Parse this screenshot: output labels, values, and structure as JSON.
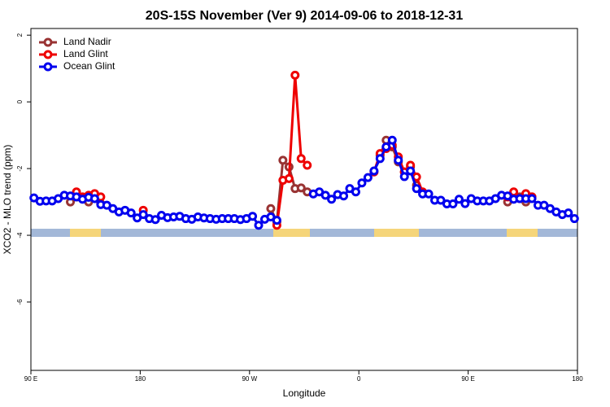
{
  "chart_data": {
    "type": "line",
    "title": "20S-15S November (Ver 9)   2014-09-06 to 2018-12-31",
    "xlabel": "Longitude",
    "ylabel": "XCO2 - MLO trend (ppm)",
    "xlim": [
      90,
      540
    ],
    "ylim": [
      -8.05,
      2.2
    ],
    "xticks": [
      {
        "value": 90,
        "label": "90 E"
      },
      180,
      {
        "value": 270,
        "label": "90 W"
      },
      {
        "value": 360,
        "label": "0"
      },
      {
        "value": 450,
        "label": "90 E"
      },
      {
        "value": 540,
        "label": "180"
      }
    ],
    "yticks": [
      2,
      0,
      -2,
      -4,
      -6
    ],
    "grid": false,
    "legend": "topleft",
    "x": [
      92.5,
      97.5,
      102.5,
      107.5,
      112.5,
      117.5,
      122.5,
      127.5,
      132.5,
      137.5,
      142.5,
      147.5,
      152.5,
      157.5,
      162.5,
      167.5,
      172.5,
      177.5,
      182.5,
      187.5,
      192.5,
      197.5,
      202.5,
      207.5,
      212.5,
      217.5,
      222.5,
      227.5,
      232.5,
      237.5,
      242.5,
      247.5,
      252.5,
      257.5,
      262.5,
      267.5,
      272.5,
      277.5,
      282.5,
      287.5,
      292.5,
      297.5,
      302.5,
      307.5,
      312.5,
      317.5,
      322.5,
      327.5,
      332.5,
      337.5,
      342.5,
      347.5,
      352.5,
      357.5,
      362.5,
      367.5,
      372.5,
      377.5,
      382.5,
      387.5,
      392.5,
      397.5,
      402.5,
      407.5,
      412.5,
      417.5,
      422.5,
      427.5,
      432.5,
      437.5,
      442.5,
      447.5,
      452.5,
      457.5,
      462.5,
      467.5,
      472.5,
      477.5,
      482.5,
      487.5,
      492.5,
      497.5,
      502.5,
      507.5,
      512.5,
      517.5,
      522.5,
      527.5,
      532.5,
      537.5
    ],
    "series": [
      {
        "name": "Land Nadir",
        "color": "#993333",
        "values": [
          null,
          null,
          null,
          null,
          null,
          null,
          -3.0,
          -2.85,
          -2.9,
          -3.0,
          -2.85,
          -3.05,
          null,
          null,
          null,
          null,
          null,
          null,
          null,
          null,
          null,
          null,
          null,
          null,
          null,
          null,
          null,
          null,
          null,
          null,
          null,
          null,
          null,
          null,
          null,
          null,
          null,
          null,
          null,
          -3.2,
          -3.6,
          -1.75,
          -1.95,
          -2.6,
          -2.58,
          -2.7,
          null,
          null,
          null,
          null,
          null,
          null,
          null,
          null,
          null,
          null,
          null,
          -1.6,
          -1.15,
          -1.35,
          -1.8,
          -2.1,
          -1.95,
          -2.5,
          null,
          null,
          null,
          null,
          null,
          null,
          null,
          null,
          null,
          null,
          null,
          null,
          null,
          null,
          -3.0,
          -2.82,
          -2.85,
          -3.0,
          -2.85,
          null,
          null,
          null,
          null,
          null,
          null,
          null
        ]
      },
      {
        "name": "Land Glint",
        "color": "#ee0000",
        "values": [
          null,
          null,
          null,
          null,
          null,
          null,
          null,
          -2.7,
          -2.85,
          -2.8,
          -2.75,
          -2.85,
          null,
          null,
          null,
          null,
          null,
          null,
          -3.25,
          null,
          null,
          null,
          null,
          null,
          null,
          null,
          null,
          null,
          null,
          null,
          null,
          null,
          null,
          null,
          null,
          null,
          null,
          null,
          null,
          null,
          -3.7,
          -2.35,
          -2.3,
          0.8,
          -1.7,
          -1.9,
          null,
          null,
          null,
          null,
          null,
          null,
          null,
          null,
          null,
          null,
          -2.1,
          -1.55,
          -1.4,
          -1.3,
          -1.65,
          -2.1,
          -1.9,
          -2.25,
          -2.7,
          null,
          null,
          null,
          null,
          null,
          null,
          null,
          null,
          null,
          null,
          null,
          null,
          null,
          -2.85,
          -2.7,
          -2.9,
          -2.75,
          -2.85,
          null,
          null,
          null,
          null,
          null,
          null,
          null
        ]
      },
      {
        "name": "Ocean Glint",
        "color": "#0000ee",
        "values": [
          -2.88,
          -2.98,
          -2.97,
          -2.97,
          -2.9,
          -2.8,
          -2.82,
          -2.85,
          -2.92,
          -2.86,
          -2.9,
          -3.08,
          -3.1,
          -3.2,
          -3.3,
          -3.25,
          -3.33,
          -3.48,
          -3.38,
          -3.5,
          -3.53,
          -3.4,
          -3.47,
          -3.45,
          -3.43,
          -3.5,
          -3.52,
          -3.45,
          -3.48,
          -3.5,
          -3.52,
          -3.5,
          -3.5,
          -3.5,
          -3.53,
          -3.5,
          -3.43,
          -3.7,
          -3.52,
          -3.45,
          -3.55,
          null,
          null,
          null,
          null,
          null,
          -2.76,
          -2.7,
          -2.8,
          -2.92,
          -2.78,
          -2.82,
          -2.6,
          -2.7,
          -2.43,
          -2.27,
          -2.07,
          -1.7,
          -1.35,
          -1.15,
          -1.75,
          -2.24,
          -2.07,
          -2.6,
          -2.76,
          -2.76,
          -2.95,
          -2.95,
          -3.06,
          -3.06,
          -2.92,
          -3.05,
          -2.9,
          -2.97,
          -2.97,
          -2.97,
          -2.9,
          -2.8,
          -2.82,
          -2.92,
          -2.9,
          -2.9,
          -2.9,
          -3.1,
          -3.1,
          -3.2,
          -3.3,
          -3.38,
          -3.33,
          -3.5
        ]
      }
    ]
  }
}
